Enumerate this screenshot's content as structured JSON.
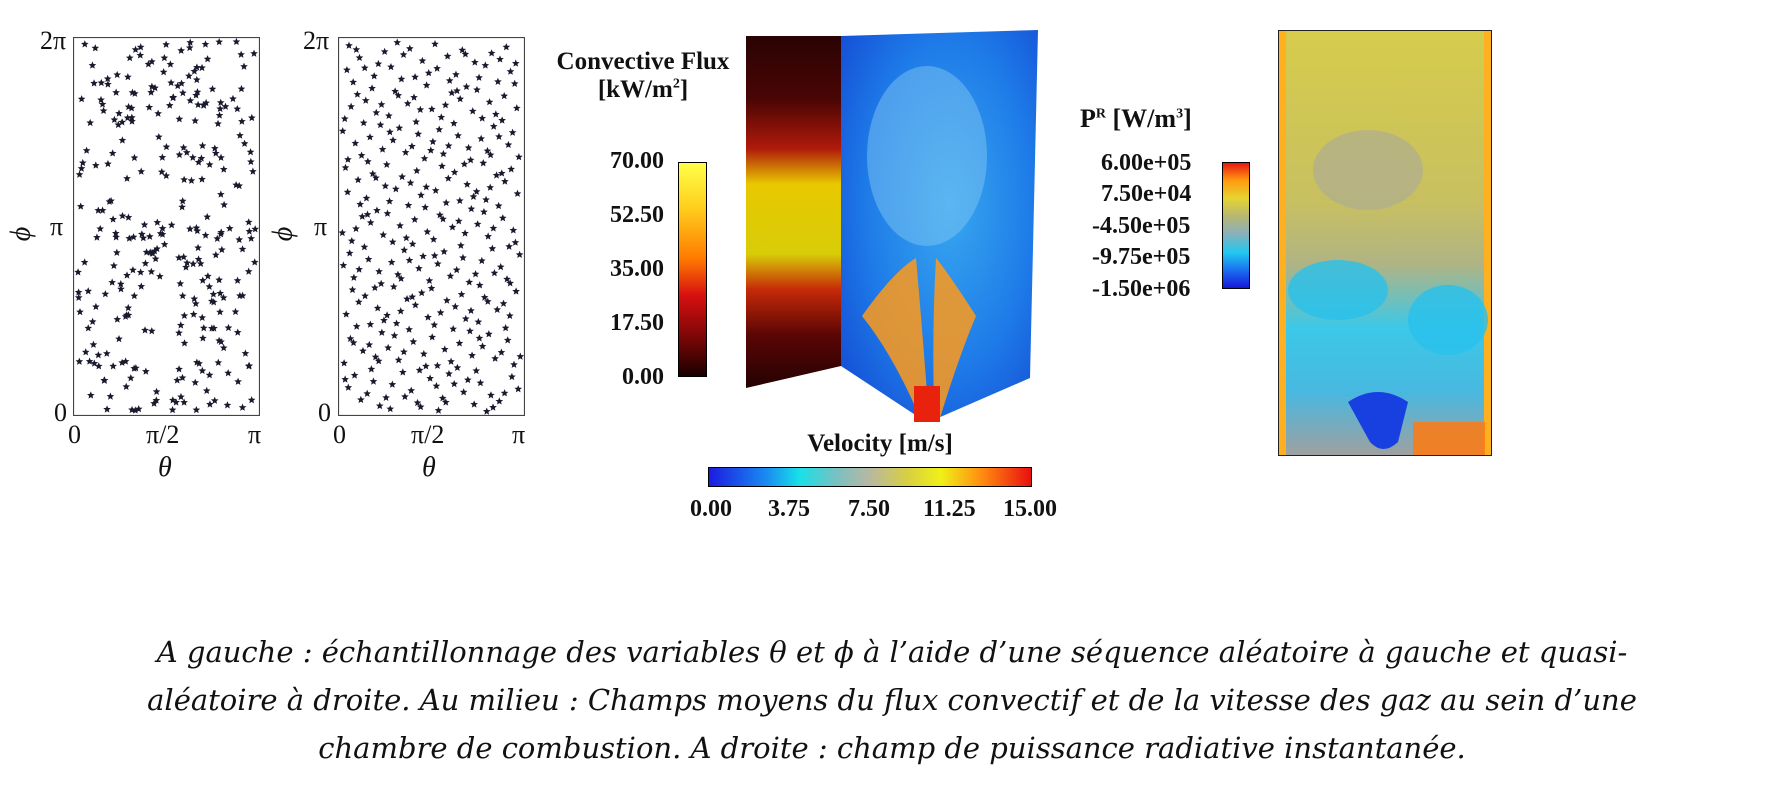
{
  "left_panels": {
    "ytick_top": "2π",
    "ytick_mid": "π",
    "ytick_bottom": "0",
    "ylabel": "ϕ",
    "xtick_left": "0",
    "xtick_mid": "π/2",
    "xtick_right": "π",
    "xlabel": "θ"
  },
  "convective": {
    "title_line1": "Convective Flux",
    "title_line2": "[kW/m",
    "title_sup": "2",
    "title_end": "]",
    "ticks": [
      "70.00",
      "52.50",
      "35.00",
      "17.50",
      "0.00"
    ]
  },
  "velocity": {
    "title": "Velocity [m/s]",
    "ticks": [
      "0.00",
      "3.75",
      "7.50",
      "11.25",
      "15.00"
    ]
  },
  "radiative": {
    "title_base": "P",
    "title_sup": "R",
    "title_unit": " [W/m",
    "title_unit_sup": "3",
    "title_end": "]",
    "ticks": [
      "6.00e+05",
      "7.50e+04",
      "-4.50e+05",
      "-9.75e+05",
      "-1.50e+06"
    ]
  },
  "caption": {
    "line1": "A gauche : échantillonnage des variables θ et ϕ à l’aide d’une séquence aléatoire à gauche et quasi-",
    "line2": "aléatoire à droite. Au milieu : Champs moyens du flux convectif et de la vitesse des gaz au sein d’une",
    "line3": "chambre de combustion. A droite : champ de puissance radiative instantanée."
  },
  "chart_data": [
    {
      "type": "scatter",
      "panel": "random sequence",
      "xlabel": "θ",
      "ylabel": "ϕ",
      "xlim": [
        0,
        3.1416
      ],
      "ylim": [
        0,
        6.2832
      ],
      "n_points": 300,
      "marker": "star",
      "color": "#1a1a2e"
    },
    {
      "type": "scatter",
      "panel": "quasi-random sequence",
      "xlabel": "θ",
      "ylabel": "ϕ",
      "xlim": [
        0,
        3.1416
      ],
      "ylim": [
        0,
        6.2832
      ],
      "n_points": 300,
      "marker": "star",
      "color": "#1a1a2e"
    }
  ]
}
